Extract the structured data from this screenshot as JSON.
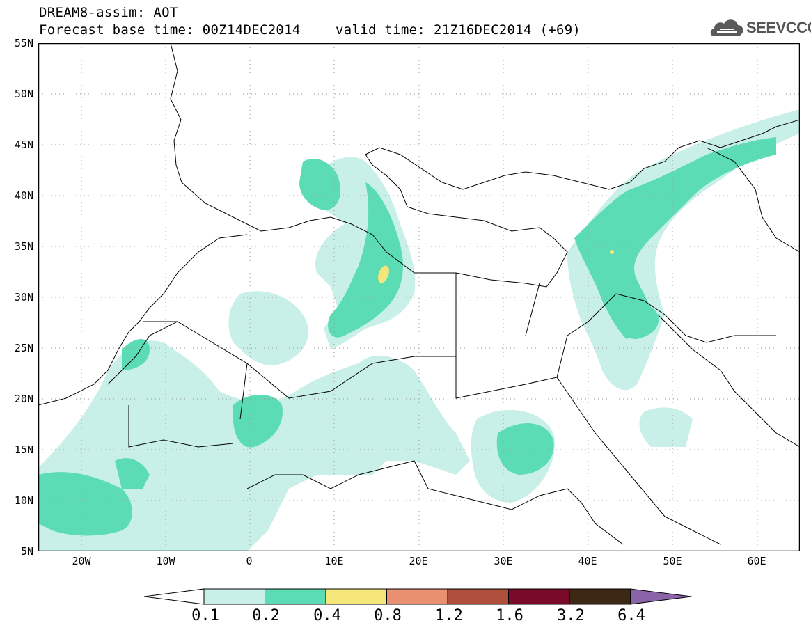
{
  "title": {
    "line1": "DREAM8-assim: AOT",
    "line2": "Forecast base time: 00Z14DEC2014",
    "valid": "valid time: 21Z16DEC2014 (+69)"
  },
  "logo": {
    "text": "SEEVCCC",
    "icon": "cloud-icon"
  },
  "map": {
    "projection": "lat-lon",
    "lon_range": [
      -25,
      65
    ],
    "lat_range": [
      5,
      55
    ],
    "gridlines": "dotted",
    "lat_labels": [
      "55N",
      "50N",
      "45N",
      "40N",
      "35N",
      "30N",
      "25N",
      "20N",
      "15N",
      "10N",
      "5N"
    ],
    "lon_labels": [
      "20W",
      "10W",
      "0",
      "10E",
      "20E",
      "30E",
      "40E",
      "50E",
      "60E"
    ],
    "variable": "AOT",
    "colors": {
      "lt0_2": "#c8f0e8",
      "lt0_4": "#5cdcb4",
      "lt0_8": "#f4e678",
      "lt1_2": "#e89070",
      "lt1_6": "#b0503c",
      "lt3_2": "#7a0a2a",
      "lt6_4": "#3c2814",
      "gt6_4": "#8a64a8"
    }
  },
  "colorbar": {
    "labels": [
      "0.1",
      "0.2",
      "0.4",
      "0.8",
      "1.2",
      "1.6",
      "3.2",
      "6.4"
    ],
    "colors": [
      "#ffffff",
      "#c8f0e8",
      "#5cdcb4",
      "#f4e678",
      "#e89070",
      "#b0503c",
      "#7a0a2a",
      "#3c2814",
      "#8a64a8"
    ]
  }
}
